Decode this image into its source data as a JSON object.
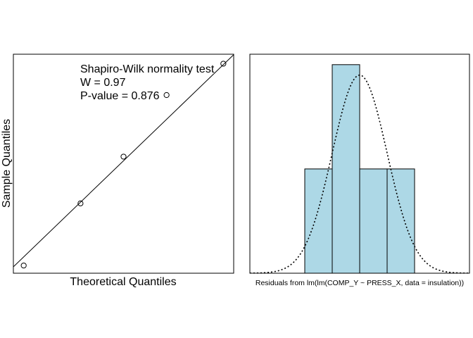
{
  "chart_data": [
    {
      "type": "scatter",
      "title": "",
      "xlabel": "Theoretical Quantiles",
      "ylabel": "Sample Quantiles",
      "annotation_lines": [
        "Shapiro-Wilk normality test",
        "W = 0.97",
        "P-value = 0.876"
      ],
      "x_ticks_shown": false,
      "y_ticks_shown": false,
      "xlim": [
        -1.28,
        1.28
      ],
      "ylim": [
        -0.85,
        1.0
      ],
      "points": [
        {
          "x": -1.16,
          "y": -0.785
        },
        {
          "x": -0.5,
          "y": -0.26
        },
        {
          "x": 0.0,
          "y": 0.135
        },
        {
          "x": 0.5,
          "y": 0.655
        },
        {
          "x": 1.16,
          "y": 0.92
        }
      ],
      "reference_line": {
        "intercept": 0.1,
        "slope": 0.7
      },
      "marker": "open-circle",
      "line_color": "#000000"
    },
    {
      "type": "histogram",
      "title": "",
      "xlabel": "Residuals from lm(lm(COMP_Y ~ PRESS_X, data = insulation))",
      "ylabel": "",
      "x_ticks_shown": false,
      "y_ticks_shown": false,
      "xlim": [
        -2.0,
        2.0
      ],
      "ylim": [
        0,
        2.1
      ],
      "bins": [
        {
          "from": -1.0,
          "to": -0.5,
          "value": 1
        },
        {
          "from": -0.5,
          "to": 0.0,
          "value": 2
        },
        {
          "from": 0.0,
          "to": 0.5,
          "value": 1
        },
        {
          "from": 0.5,
          "to": 1.0,
          "value": 1
        }
      ],
      "bar_fill": "#add8e6",
      "density_curve": {
        "style": "dotted",
        "mean": 0.0,
        "sd": 0.5,
        "peak": 1.9
      }
    }
  ]
}
